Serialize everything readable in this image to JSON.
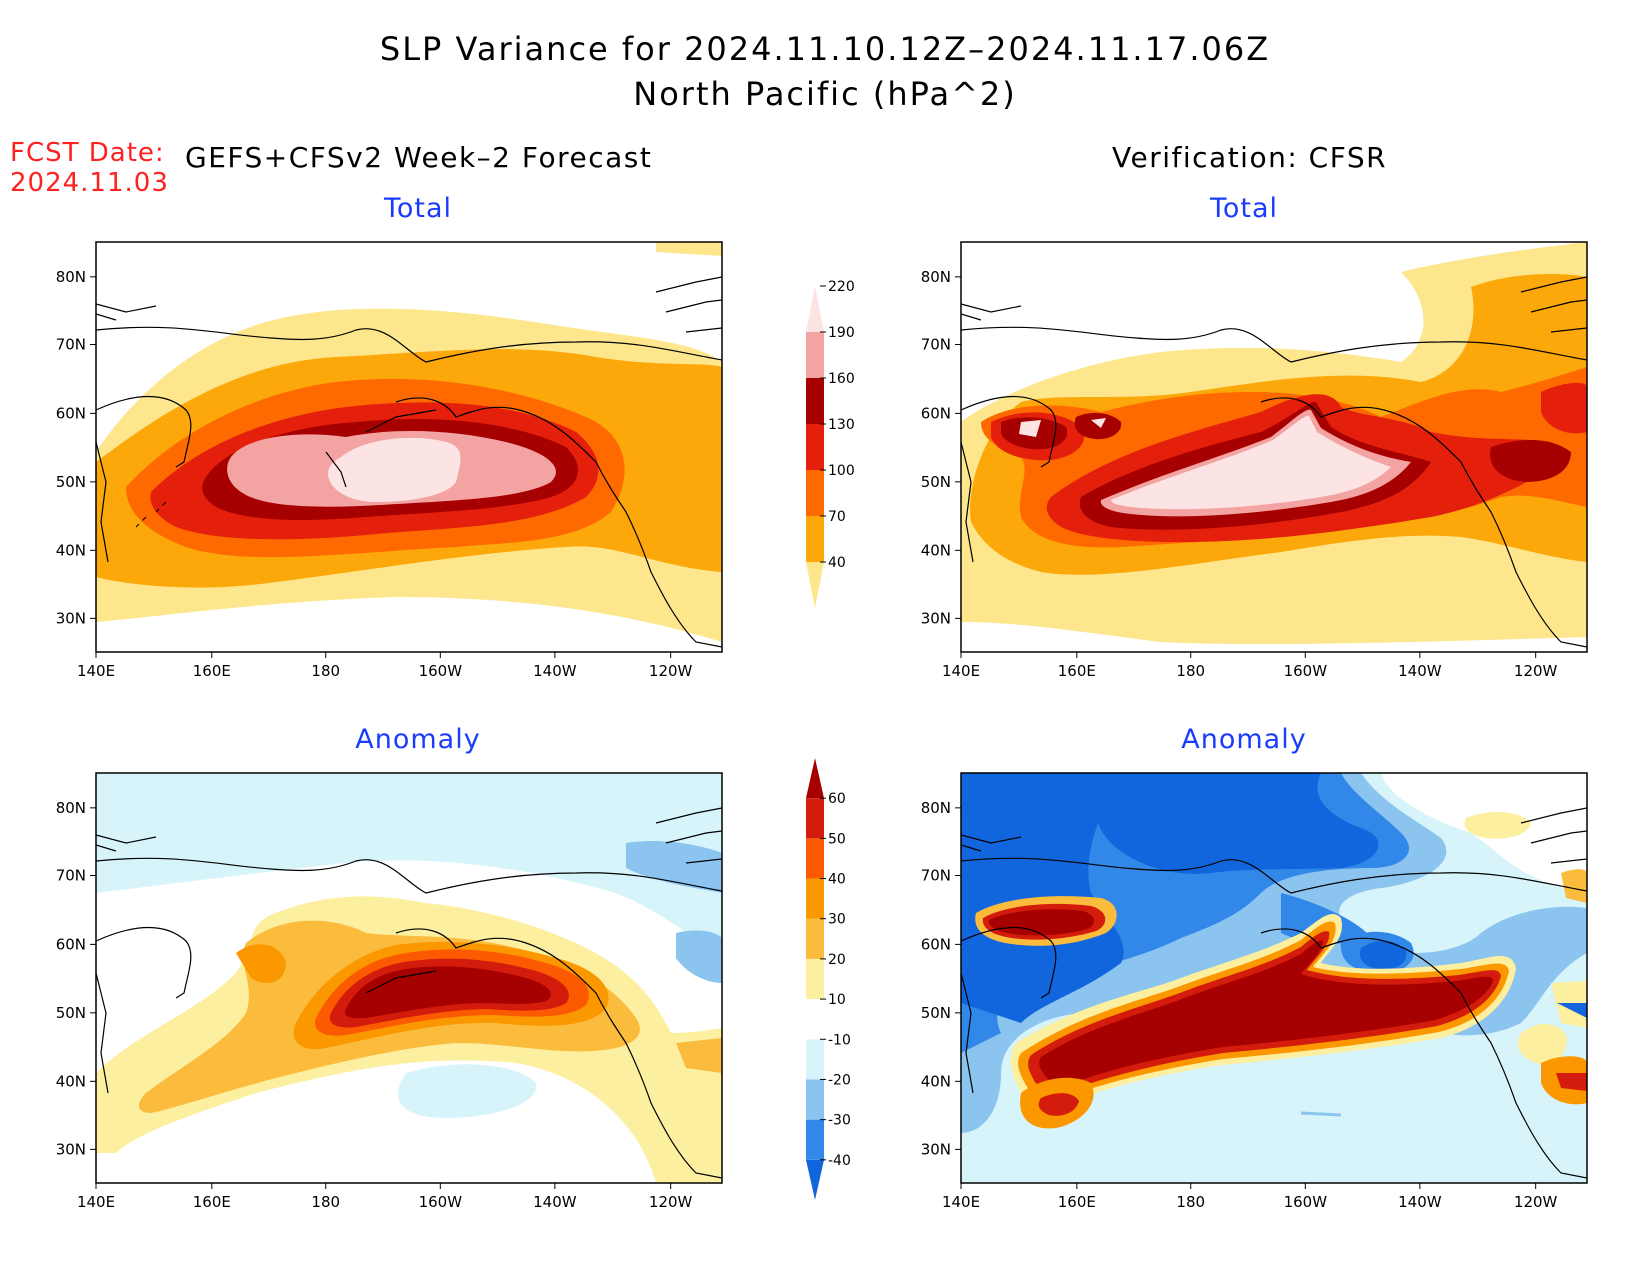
{
  "title": {
    "line1": "SLP Variance for 2024.11.10.12Z–2024.11.17.06Z",
    "line2": "North Pacific (hPa^2)"
  },
  "fcst_date": {
    "label": "FCST Date:",
    "value": "2024.11.03"
  },
  "left_header": "GEFS+CFSv2 Week–2 Forecast",
  "right_header": "Verification: CFSR",
  "panels": [
    {
      "id": "forecast-total",
      "title": "Total"
    },
    {
      "id": "verification-total",
      "title": "Total"
    },
    {
      "id": "forecast-anomaly",
      "title": "Anomaly"
    },
    {
      "id": "verification-anomaly",
      "title": "Anomaly"
    }
  ],
  "axes": {
    "lat_labels": [
      "80N",
      "70N",
      "60N",
      "50N",
      "40N",
      "30N"
    ],
    "lon_labels": [
      "140E",
      "160E",
      "180",
      "160W",
      "140W",
      "120W"
    ]
  },
  "colorbar_total": {
    "levels": [
      "40",
      "70",
      "100",
      "130",
      "160",
      "190",
      "220"
    ],
    "colors": [
      "#fde68c",
      "#fca70a",
      "#ff6a00",
      "#e4200c",
      "#a70000",
      "#f4a3a3",
      "#fde4e4"
    ]
  },
  "colorbar_anomaly": {
    "levels": [
      "-40",
      "-30",
      "-20",
      "-10",
      "10",
      "20",
      "30",
      "40",
      "50",
      "60"
    ],
    "colors": [
      "#1166dd",
      "#3188e8",
      "#8cc4f0",
      "#d7f4fb",
      "#ffffff",
      "#fdefa0",
      "#fbbc3e",
      "#fb9800",
      "#fc5a00",
      "#d31c0c",
      "#a70000"
    ]
  }
}
